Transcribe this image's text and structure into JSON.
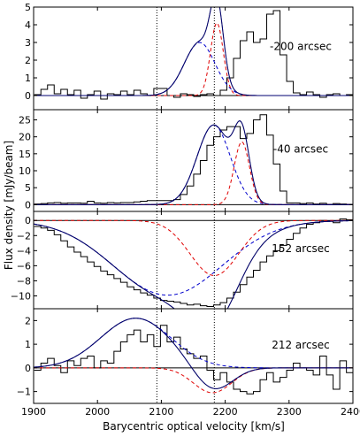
{
  "figure": {
    "xlabel": "Barycentric optical velocity [km/s]",
    "ylabel": "Flux density [mJy/beam]"
  },
  "chart_data": [
    {
      "type": "line",
      "annotation": "-200 arcsec",
      "xlim": [
        1900,
        2400
      ],
      "ylim": [
        -0.8,
        5
      ],
      "yticks": [
        0,
        1,
        2,
        3,
        4,
        5
      ],
      "xticks": [
        1900,
        2000,
        2100,
        2200,
        2300,
        2400
      ],
      "x_tick_labels_shown": false,
      "vlines": [
        2093,
        2183
      ],
      "components": [
        {
          "role": "fit-1",
          "center": 2160,
          "sigma": 24,
          "amp": 3.0
        },
        {
          "role": "fit-2",
          "center": 2187,
          "sigma": 10,
          "amp": 4.1
        }
      ],
      "steps": {
        "x0": 1901,
        "bin": 10.4,
        "values": [
          0.05,
          0.35,
          0.6,
          0.1,
          0.35,
          0.05,
          0.3,
          -0.15,
          0.05,
          0.25,
          -0.2,
          0.1,
          0.05,
          0.25,
          0.05,
          0.3,
          0.1,
          0.0,
          0.4,
          0.4,
          0.0,
          -0.1,
          0.1,
          0.05,
          -0.05,
          0.05,
          0.1,
          0.0,
          0.3,
          1.0,
          2.1,
          3.1,
          3.6,
          3.0,
          3.2,
          4.6,
          4.8,
          2.3,
          0.8,
          0.15,
          0.05,
          0.2,
          0.05,
          -0.1,
          0.05,
          0.1,
          0.0,
          0.05
        ]
      }
    },
    {
      "type": "line",
      "annotation": "-40 arcsec",
      "xlim": [
        1900,
        2400
      ],
      "ylim": [
        -2,
        28
      ],
      "yticks": [
        0,
        5,
        10,
        15,
        20,
        25
      ],
      "xticks": [
        1900,
        2000,
        2100,
        2200,
        2300,
        2400
      ],
      "x_tick_labels_shown": false,
      "vlines": [
        2093,
        2183
      ],
      "components": [
        {
          "role": "fit-1",
          "center": 2182,
          "sigma": 26,
          "amp": 23.5
        },
        {
          "role": "fit-2",
          "center": 2226,
          "sigma": 12,
          "amp": 18.5
        }
      ],
      "steps": {
        "x0": 1901,
        "bin": 10.4,
        "values": [
          0.2,
          0.3,
          0.5,
          0.6,
          0.4,
          0.5,
          0.5,
          0.4,
          1.0,
          0.5,
          0.4,
          0.6,
          0.5,
          0.6,
          0.6,
          0.8,
          1.0,
          1.2,
          1.2,
          1.2,
          1.2,
          1.5,
          3.0,
          5.5,
          9.0,
          13.0,
          17.5,
          20.0,
          22.0,
          23.0,
          23.0,
          19.5,
          21.0,
          25.0,
          26.5,
          20.5,
          12.0,
          4.0,
          0.5,
          0.5,
          0.3,
          0.5,
          0.2,
          0.4,
          0.1,
          0.3,
          0.2,
          0.1
        ]
      }
    },
    {
      "type": "line",
      "annotation": "152 arcsec",
      "xlim": [
        1900,
        2400
      ],
      "ylim": [
        -11.7,
        1.2
      ],
      "yticks": [
        -10,
        -8,
        -6,
        -4,
        -2,
        0
      ],
      "xticks": [
        1900,
        2000,
        2100,
        2200,
        2300,
        2400
      ],
      "x_tick_labels_shown": false,
      "vlines": [
        2093,
        2183
      ],
      "components": [
        {
          "role": "fit-1",
          "center": 2110,
          "sigma": 85,
          "amp": -9.9
        },
        {
          "role": "fit-2",
          "center": 2183,
          "sigma": 38,
          "amp": -7.3
        }
      ],
      "steps": {
        "x0": 1901,
        "bin": 10.4,
        "values": [
          -0.8,
          -1.0,
          -1.3,
          -1.9,
          -2.7,
          -3.5,
          -4.2,
          -4.8,
          -5.5,
          -6.1,
          -6.7,
          -7.2,
          -7.7,
          -8.2,
          -8.8,
          -9.2,
          -9.6,
          -9.9,
          -10.3,
          -10.6,
          -10.7,
          -10.8,
          -11.0,
          -11.2,
          -11.1,
          -11.3,
          -11.4,
          -11.2,
          -10.9,
          -10.3,
          -9.5,
          -8.5,
          -7.5,
          -6.6,
          -5.5,
          -4.7,
          -4.0,
          -3.3,
          -2.5,
          -1.7,
          -1.0,
          -0.5,
          -0.3,
          0.0,
          -0.1,
          -0.3,
          0.2,
          0.1
        ]
      }
    },
    {
      "type": "line",
      "annotation": "212 arcsec",
      "xlim": [
        1900,
        2400
      ],
      "ylim": [
        -1.5,
        2.5
      ],
      "yticks": [
        -1,
        0,
        1,
        2
      ],
      "xticks": [
        1900,
        2000,
        2100,
        2200,
        2300,
        2400
      ],
      "x_tick_labels_shown": true,
      "vlines": [
        2093,
        2183
      ],
      "components": [
        {
          "role": "fit-1",
          "center": 2060,
          "sigma": 55,
          "amp": 2.1
        },
        {
          "role": "fit-2",
          "center": 2180,
          "sigma": 30,
          "amp": -1.05
        }
      ],
      "steps": {
        "x0": 1901,
        "bin": 10.4,
        "values": [
          -0.1,
          0.2,
          0.4,
          0.1,
          -0.2,
          0.3,
          0.1,
          0.4,
          0.5,
          0.0,
          0.3,
          0.2,
          0.7,
          1.1,
          1.4,
          1.6,
          1.1,
          1.4,
          0.9,
          1.8,
          1.1,
          1.3,
          0.8,
          0.6,
          0.4,
          0.5,
          -0.1,
          -0.5,
          -0.2,
          -0.6,
          -0.9,
          -1.0,
          -1.1,
          -1.0,
          -0.5,
          -0.2,
          -0.6,
          -0.4,
          -0.1,
          0.2,
          0.0,
          -0.1,
          -0.3,
          0.5,
          -0.3,
          -0.9,
          0.3,
          -0.2
        ]
      }
    }
  ]
}
